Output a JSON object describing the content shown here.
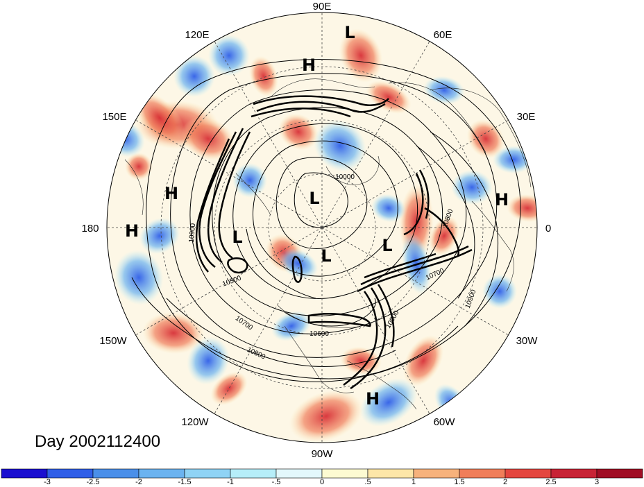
{
  "title": "Day 2002112400",
  "longitude_labels": {
    "lon_90e": "90E",
    "lon_60e": "60E",
    "lon_30e": "30E",
    "lon_0": "0",
    "lon_30w": "30W",
    "lon_60w": "60W",
    "lon_90w": "90W",
    "lon_120w": "120W",
    "lon_150w": "150W",
    "lon_180": "180",
    "lon_150e": "150E",
    "lon_120e": "120E"
  },
  "pressure_centers": [
    {
      "type": "L",
      "label": "L"
    },
    {
      "type": "H",
      "label": "H"
    },
    {
      "type": "H",
      "label": "H"
    },
    {
      "type": "H",
      "label": "H"
    },
    {
      "type": "H",
      "label": "H"
    },
    {
      "type": "L",
      "label": "L"
    },
    {
      "type": "L",
      "label": "L"
    },
    {
      "type": "L",
      "label": "L"
    },
    {
      "type": "L",
      "label": "L"
    },
    {
      "type": "H",
      "label": "H"
    }
  ],
  "contour_labels": [
    "10000",
    "10800",
    "10700",
    "10500",
    "10700",
    "10800",
    "10900",
    "10600",
    "10900",
    "10900"
  ],
  "colorbar": {
    "ticks": [
      "-3",
      "-2.5",
      "-2",
      "-1.5",
      "-1",
      "-.5",
      "0",
      ".5",
      "1",
      "1.5",
      "2",
      "2.5",
      "3"
    ],
    "colors": [
      "#1a0fd0",
      "#2f5ee8",
      "#4a8fe9",
      "#6bb3f0",
      "#8fd3f5",
      "#b6eef9",
      "#e3f8fc",
      "#fdfbd2",
      "#fde6a8",
      "#f7b27c",
      "#f07e5a",
      "#e4463f",
      "#c82335",
      "#a00d24"
    ]
  },
  "colors": {
    "cold": "#4a8fe9",
    "warm": "#e4463f",
    "neutral": "#fffaf0"
  }
}
